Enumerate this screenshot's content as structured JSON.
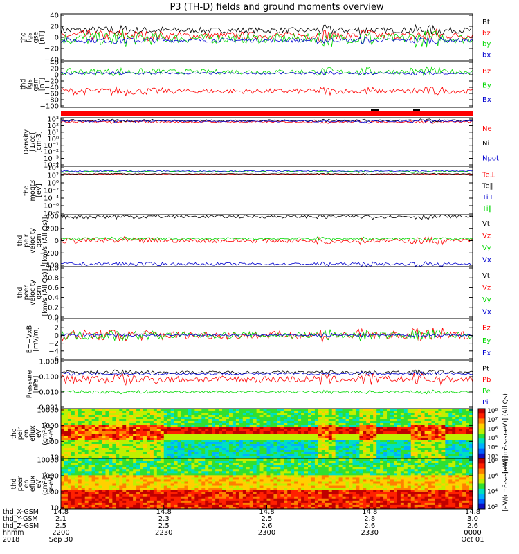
{
  "title": "P3 (TH-D) fields and ground moments overview",
  "colors": {
    "black": "#000000",
    "red": "#ff0000",
    "green": "#00d800",
    "blue": "#0000d0"
  },
  "chart_data": [
    {
      "type": "line",
      "id": "fgs",
      "ylabel": [
        "thd",
        "fgs",
        "gse",
        "[nT]"
      ],
      "yticks": [
        "40",
        "20",
        "0",
        "−20",
        "−40"
      ],
      "ylim": [
        -40,
        40
      ],
      "series": [
        {
          "name": "Bt",
          "color": "black",
          "base": 12,
          "amp": 6
        },
        {
          "name": "bz",
          "color": "red",
          "base": 3,
          "amp": 8
        },
        {
          "name": "by",
          "color": "green",
          "base": -2,
          "amp": 10
        },
        {
          "name": "bx",
          "color": "blue",
          "base": -5,
          "amp": 4
        }
      ]
    },
    {
      "type": "line",
      "id": "fgs_gsm",
      "ylabel": [
        "thd",
        "fgs",
        "gsm",
        "[nT]"
      ],
      "yticks": [
        "40",
        "20",
        "0",
        "−20",
        "−40",
        "−60",
        "−80",
        "−100"
      ],
      "ylim": [
        -110,
        40
      ],
      "series": [
        {
          "name": "Bz",
          "color": "red",
          "base": -58,
          "amp": 10
        },
        {
          "name": "By",
          "color": "green",
          "base": 5,
          "amp": 10
        },
        {
          "name": "Bx",
          "color": "blue",
          "base": 0,
          "amp": 4
        }
      ]
    },
    {
      "type": "line",
      "id": "density",
      "log": true,
      "ylabel": [
        "Density",
        "[1/cc]",
        "[cm-3]"
      ],
      "yticks": [
        "10³",
        "10²",
        "10¹",
        "10⁰",
        "10⁻¹",
        "10⁻²",
        "10⁻³",
        "10⁻⁴"
      ],
      "ylim": [
        0.0001,
        1000
      ],
      "series": [
        {
          "name": "Ne",
          "color": "red",
          "base": 2.4,
          "amp": 0.15
        },
        {
          "name": "Ni",
          "color": "black",
          "base": 2.6,
          "amp": 0.15
        },
        {
          "name": "Npot",
          "color": "blue",
          "base": 2.5,
          "amp": 0.15
        }
      ]
    },
    {
      "type": "line",
      "id": "temp",
      "log": true,
      "ylabel": [
        "thd",
        "moqt3",
        "[eV]"
      ],
      "yticks": [
        "10⁴",
        "10²",
        "10⁰",
        "10⁻²",
        "10⁻⁴",
        "10⁻⁶",
        "10⁻⁸"
      ],
      "ylim": [
        1e-08,
        10000
      ],
      "series": [
        {
          "name": "Te⊥",
          "color": "red",
          "base": 2.0,
          "amp": 0.1
        },
        {
          "name": "Te‖",
          "color": "black",
          "base": 2.1,
          "amp": 0.1
        },
        {
          "name": "Ti⊥",
          "color": "blue",
          "base": 2.8,
          "amp": 0.15
        },
        {
          "name": "Ti‖",
          "color": "green",
          "base": 2.6,
          "amp": 0.15
        }
      ]
    },
    {
      "type": "line",
      "id": "peir_vel",
      "ylabel": [
        "thd",
        "peir",
        "velocity",
        "gsm",
        "[km/s (All Qs)]"
      ],
      "yticks": [
        "400",
        "200",
        "0",
        "−200",
        "−400"
      ],
      "ylim": [
        -400,
        400
      ],
      "series": [
        {
          "name": "Vt",
          "color": "black",
          "base": 370,
          "amp": 30
        },
        {
          "name": "Vz",
          "color": "red",
          "base": 0,
          "amp": 40
        },
        {
          "name": "Vy",
          "color": "green",
          "base": 30,
          "amp": 20
        },
        {
          "name": "Vx",
          "color": "blue",
          "base": -360,
          "amp": 25
        }
      ]
    },
    {
      "type": "line",
      "id": "peer_vel",
      "ylabel": [
        "thd",
        "peer",
        "velocity",
        "gsm",
        "[km/s (All Qs)]"
      ],
      "yticks": [
        "1.0",
        "0.8",
        "0.6",
        "0.4",
        "0.2",
        "0.0"
      ],
      "ylim": [
        0,
        1
      ],
      "series": [
        {
          "name": "Vt",
          "color": "black"
        },
        {
          "name": "Vz",
          "color": "red"
        },
        {
          "name": "Vy",
          "color": "green"
        },
        {
          "name": "Vx",
          "color": "blue"
        }
      ]
    },
    {
      "type": "line",
      "id": "efield",
      "ylabel": [
        "E=−VxB",
        "[mV/m]"
      ],
      "yticks": [
        "4",
        "2",
        "0",
        "−2",
        "−4",
        "−6"
      ],
      "ylim": [
        -6,
        4
      ],
      "series": [
        {
          "name": "Ez",
          "color": "red",
          "base": 0,
          "amp": 1.2
        },
        {
          "name": "Ey",
          "color": "green",
          "base": 0,
          "amp": 1.0
        },
        {
          "name": "Ex",
          "color": "blue",
          "base": 0,
          "amp": 0.3
        }
      ]
    },
    {
      "type": "line",
      "id": "pressure",
      "log": true,
      "ylabel": [
        "Pressure",
        "[nPa]"
      ],
      "yticks": [
        "1.000",
        "0.100",
        "0.010",
        "0.001"
      ],
      "ylim": [
        0.0005,
        1.5
      ],
      "series": [
        {
          "name": "Pt",
          "color": "black",
          "base": -0.7,
          "amp": 0.12
        },
        {
          "name": "Pb",
          "color": "red",
          "base": -1.2,
          "amp": 0.3
        },
        {
          "name": "Pe",
          "color": "green",
          "base": -2.1,
          "amp": 0.1
        },
        {
          "name": "Pi",
          "color": "blue",
          "base": -0.8,
          "amp": 0.1
        }
      ]
    },
    {
      "type": "heatmap",
      "id": "peir_en",
      "ylabel": [
        "thd",
        "peir",
        "en",
        "eflux",
        "eV",
        "(cm²-s-",
        "sr-eV)"
      ],
      "yticks": [
        "10000",
        "1000",
        "100",
        "10"
      ],
      "ylim": [
        5,
        30000
      ]
    },
    {
      "type": "heatmap",
      "id": "peer_en",
      "ylabel": [
        "thd",
        "peer",
        "en",
        "eflux",
        "eV",
        "(cm²-s-",
        "sr-eV)"
      ],
      "yticks": [
        "10000",
        "1000",
        "100",
        "10"
      ],
      "ylim": [
        5,
        30000
      ]
    }
  ],
  "colorbars": [
    {
      "ticks": [
        "10⁸",
        "10⁷",
        "10⁶",
        "10⁵",
        "10⁴",
        "10³"
      ],
      "label": "[eV/(cm²-s-sr-eV)] (All Qs)"
    },
    {
      "ticks": [
        "10⁸",
        "10⁶",
        "10⁴",
        "10²"
      ],
      "label": "[eV/(cm²-s-sr-eV)]"
    }
  ],
  "xaxis": {
    "row_labels": [
      "thd_X-GSM",
      "thd_Y-GSM",
      "thd_Z-GSM",
      "hhmm",
      "2018"
    ],
    "ticks": [
      {
        "rows": [
          "14.8",
          "2.1",
          "2.5",
          "2200",
          "Sep 30"
        ]
      },
      {
        "rows": [
          "14.8",
          "2.3",
          "2.5",
          "2230",
          ""
        ]
      },
      {
        "rows": [
          "14.8",
          "2.5",
          "2.6",
          "2300",
          ""
        ]
      },
      {
        "rows": [
          "14.8",
          "2.8",
          "2.6",
          "2330",
          ""
        ]
      },
      {
        "rows": [
          "14.8",
          "3.0",
          "2.6",
          "0000",
          "Oct 01"
        ]
      }
    ]
  }
}
